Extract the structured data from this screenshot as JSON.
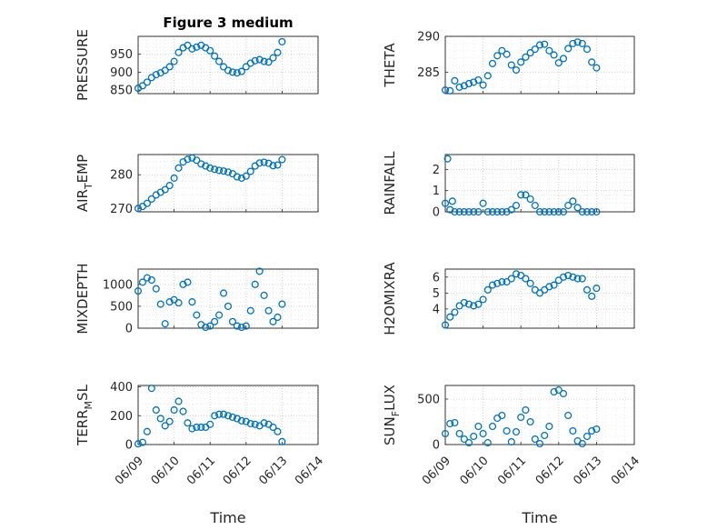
{
  "figure": {
    "title": "Figure 3 medium",
    "marker_color": "#0072BD",
    "marker": "circle",
    "grid": true,
    "minor_grid": true
  },
  "chart_data": [
    {
      "type": "scatter",
      "ylabel": "PRESSURE",
      "ylim": [
        840,
        1000
      ],
      "yticks": [
        850,
        900,
        950
      ],
      "xlim": [
        "06/09",
        "06/14"
      ],
      "xticks": [
        "06/09",
        "06/10",
        "06/11",
        "06/12",
        "06/13",
        "06/14"
      ],
      "show_xticks": false,
      "xlabel": "",
      "x": [
        "06/09 00:00",
        "06/09 03:00",
        "06/09 06:00",
        "06/09 09:00",
        "06/09 12:00",
        "06/09 15:00",
        "06/09 18:00",
        "06/09 21:00",
        "06/10 00:00",
        "06/10 03:00",
        "06/10 06:00",
        "06/10 09:00",
        "06/10 12:00",
        "06/10 15:00",
        "06/10 18:00",
        "06/10 21:00",
        "06/11 00:00",
        "06/11 03:00",
        "06/11 06:00",
        "06/11 09:00",
        "06/11 12:00",
        "06/11 15:00",
        "06/11 18:00",
        "06/11 21:00",
        "06/12 00:00",
        "06/12 03:00",
        "06/12 06:00",
        "06/12 09:00",
        "06/12 12:00",
        "06/12 15:00",
        "06/12 18:00",
        "06/12 21:00",
        "06/13 00:00"
      ],
      "y": [
        855,
        862,
        872,
        885,
        893,
        898,
        905,
        915,
        930,
        955,
        968,
        975,
        965,
        970,
        975,
        968,
        960,
        945,
        930,
        915,
        905,
        900,
        898,
        902,
        915,
        925,
        932,
        935,
        930,
        928,
        940,
        955,
        985
      ]
    },
    {
      "type": "scatter",
      "ylabel": "THETA",
      "ylim": [
        282,
        290
      ],
      "yticks": [
        285,
        290
      ],
      "xlim": [
        "06/09",
        "06/14"
      ],
      "xticks": [
        "06/09",
        "06/10",
        "06/11",
        "06/12",
        "06/13",
        "06/14"
      ],
      "show_xticks": false,
      "xlabel": "",
      "x": [
        "06/09 00:00",
        "06/09 03:00",
        "06/09 06:00",
        "06/09 09:00",
        "06/09 12:00",
        "06/09 15:00",
        "06/09 18:00",
        "06/09 21:00",
        "06/10 00:00",
        "06/10 03:00",
        "06/10 06:00",
        "06/10 09:00",
        "06/10 12:00",
        "06/10 15:00",
        "06/10 18:00",
        "06/10 21:00",
        "06/11 00:00",
        "06/11 03:00",
        "06/11 06:00",
        "06/11 09:00",
        "06/11 12:00",
        "06/11 15:00",
        "06/11 18:00",
        "06/11 21:00",
        "06/12 00:00",
        "06/12 03:00",
        "06/12 06:00",
        "06/12 09:00",
        "06/12 12:00",
        "06/12 15:00",
        "06/12 18:00",
        "06/12 21:00",
        "06/13 00:00"
      ],
      "y": [
        282.5,
        282.4,
        283.8,
        282.9,
        283.1,
        283.4,
        283.6,
        283.9,
        283.2,
        284.5,
        286.2,
        287.3,
        288.0,
        287.5,
        286.0,
        285.3,
        286.4,
        287.1,
        287.7,
        288.2,
        288.8,
        288.9,
        288.0,
        287.4,
        286.3,
        286.9,
        288.3,
        289.0,
        289.2,
        289.0,
        288.2,
        286.4,
        285.6
      ]
    },
    {
      "type": "scatter",
      "ylabel": "AIR_TEMP",
      "ylabel_display": [
        "AIR",
        "T",
        "EMP"
      ],
      "ylim": [
        269,
        286
      ],
      "yticks": [
        270,
        280
      ],
      "xlim": [
        "06/09",
        "06/14"
      ],
      "xticks": [
        "06/09",
        "06/10",
        "06/11",
        "06/12",
        "06/13",
        "06/14"
      ],
      "show_xticks": false,
      "xlabel": "",
      "x": [
        "06/09 00:00",
        "06/09 03:00",
        "06/09 06:00",
        "06/09 09:00",
        "06/09 12:00",
        "06/09 15:00",
        "06/09 18:00",
        "06/09 21:00",
        "06/10 00:00",
        "06/10 03:00",
        "06/10 06:00",
        "06/10 09:00",
        "06/10 12:00",
        "06/10 15:00",
        "06/10 18:00",
        "06/10 21:00",
        "06/11 00:00",
        "06/11 03:00",
        "06/11 06:00",
        "06/11 09:00",
        "06/11 12:00",
        "06/11 15:00",
        "06/11 18:00",
        "06/11 21:00",
        "06/12 00:00",
        "06/12 03:00",
        "06/12 06:00",
        "06/12 09:00",
        "06/12 12:00",
        "06/12 15:00",
        "06/12 18:00",
        "06/12 21:00",
        "06/13 00:00"
      ],
      "y": [
        270.0,
        270.6,
        271.5,
        272.8,
        274.0,
        274.8,
        275.6,
        276.8,
        279.0,
        282.0,
        283.8,
        284.6,
        285.0,
        284.3,
        283.2,
        282.6,
        282.0,
        281.6,
        281.3,
        281.1,
        280.8,
        280.3,
        279.4,
        279.0,
        279.6,
        281.0,
        282.6,
        283.5,
        283.7,
        283.4,
        282.7,
        282.9,
        284.5
      ]
    },
    {
      "type": "scatter",
      "ylabel": "RAINFALL",
      "ylim": [
        0,
        2.7
      ],
      "yticks": [
        0,
        1,
        2
      ],
      "xlim": [
        "06/09",
        "06/14"
      ],
      "xticks": [
        "06/09",
        "06/10",
        "06/11",
        "06/12",
        "06/13",
        "06/14"
      ],
      "show_xticks": false,
      "xlabel": "",
      "x": [
        "06/09 00:00",
        "06/09 01:30",
        "06/09 03:00",
        "06/09 04:30",
        "06/09 06:00",
        "06/09 09:00",
        "06/09 12:00",
        "06/09 15:00",
        "06/09 18:00",
        "06/09 21:00",
        "06/10 00:00",
        "06/10 03:00",
        "06/10 06:00",
        "06/10 09:00",
        "06/10 12:00",
        "06/10 15:00",
        "06/10 18:00",
        "06/10 21:00",
        "06/11 00:00",
        "06/11 03:00",
        "06/11 06:00",
        "06/11 09:00",
        "06/11 12:00",
        "06/11 15:00",
        "06/11 18:00",
        "06/11 21:00",
        "06/12 00:00",
        "06/12 03:00",
        "06/12 06:00",
        "06/12 09:00",
        "06/12 12:00",
        "06/12 15:00",
        "06/12 18:00",
        "06/12 21:00",
        "06/13 00:00"
      ],
      "y": [
        0.4,
        2.5,
        0.1,
        0.5,
        0.0,
        0.0,
        0.0,
        0.0,
        0.0,
        0.0,
        0.4,
        0.0,
        0.0,
        0.0,
        0.0,
        0.0,
        0.1,
        0.3,
        0.8,
        0.8,
        0.6,
        0.3,
        0.0,
        0.0,
        0.0,
        0.0,
        0.0,
        0.0,
        0.3,
        0.5,
        0.2,
        0.0,
        0.0,
        0.0,
        0.0
      ]
    },
    {
      "type": "scatter",
      "ylabel": "MIXDEPTH",
      "ylim": [
        0,
        1350
      ],
      "yticks": [
        0,
        500,
        1000
      ],
      "xlim": [
        "06/09",
        "06/14"
      ],
      "xticks": [
        "06/09",
        "06/10",
        "06/11",
        "06/12",
        "06/13",
        "06/14"
      ],
      "show_xticks": false,
      "xlabel": "",
      "x": [
        "06/09 00:00",
        "06/09 03:00",
        "06/09 06:00",
        "06/09 09:00",
        "06/09 12:00",
        "06/09 15:00",
        "06/09 18:00",
        "06/09 21:00",
        "06/10 00:00",
        "06/10 03:00",
        "06/10 06:00",
        "06/10 09:00",
        "06/10 12:00",
        "06/10 15:00",
        "06/10 18:00",
        "06/10 21:00",
        "06/11 00:00",
        "06/11 03:00",
        "06/11 06:00",
        "06/11 09:00",
        "06/11 12:00",
        "06/11 15:00",
        "06/11 18:00",
        "06/11 21:00",
        "06/12 00:00",
        "06/12 03:00",
        "06/12 06:00",
        "06/12 09:00",
        "06/12 12:00",
        "06/12 15:00",
        "06/12 18:00",
        "06/12 21:00",
        "06/13 00:00"
      ],
      "y": [
        850,
        1050,
        1150,
        1100,
        900,
        550,
        100,
        600,
        650,
        580,
        1000,
        1050,
        600,
        300,
        80,
        20,
        50,
        150,
        300,
        800,
        500,
        150,
        50,
        20,
        50,
        400,
        1000,
        1300,
        750,
        400,
        150,
        250,
        550
      ]
    },
    {
      "type": "scatter",
      "ylabel": "H2OMIXRA",
      "ylim": [
        2.8,
        6.5
      ],
      "yticks": [
        4,
        5,
        6
      ],
      "xlim": [
        "06/09",
        "06/14"
      ],
      "xticks": [
        "06/09",
        "06/10",
        "06/11",
        "06/12",
        "06/13",
        "06/14"
      ],
      "show_xticks": false,
      "xlabel": "",
      "x": [
        "06/09 00:00",
        "06/09 03:00",
        "06/09 06:00",
        "06/09 09:00",
        "06/09 12:00",
        "06/09 15:00",
        "06/09 18:00",
        "06/09 21:00",
        "06/10 00:00",
        "06/10 03:00",
        "06/10 06:00",
        "06/10 09:00",
        "06/10 12:00",
        "06/10 15:00",
        "06/10 18:00",
        "06/10 21:00",
        "06/11 00:00",
        "06/11 03:00",
        "06/11 06:00",
        "06/11 09:00",
        "06/11 12:00",
        "06/11 15:00",
        "06/11 18:00",
        "06/11 21:00",
        "06/12 00:00",
        "06/12 03:00",
        "06/12 06:00",
        "06/12 09:00",
        "06/12 12:00",
        "06/12 15:00",
        "06/12 18:00",
        "06/12 21:00",
        "06/13 00:00"
      ],
      "y": [
        3.0,
        3.5,
        3.8,
        4.2,
        4.4,
        4.3,
        4.2,
        4.3,
        4.6,
        5.2,
        5.5,
        5.6,
        5.7,
        5.7,
        5.9,
        6.2,
        6.1,
        5.9,
        5.6,
        5.2,
        5.0,
        5.2,
        5.4,
        5.5,
        5.8,
        6.0,
        6.1,
        6.0,
        5.9,
        5.9,
        5.2,
        4.8,
        5.3
      ]
    },
    {
      "type": "scatter",
      "ylabel": "TERR_MSL",
      "ylabel_display": [
        "TERR",
        "M",
        "SL"
      ],
      "ylim": [
        0,
        410
      ],
      "yticks": [
        0,
        200,
        400
      ],
      "xlim": [
        "06/09",
        "06/14"
      ],
      "xticks": [
        "06/09",
        "06/10",
        "06/11",
        "06/12",
        "06/13",
        "06/14"
      ],
      "show_xticks": true,
      "xlabel": "Time",
      "x": [
        "06/09 00:00",
        "06/09 03:00",
        "06/09 06:00",
        "06/09 09:00",
        "06/09 12:00",
        "06/09 15:00",
        "06/09 18:00",
        "06/09 21:00",
        "06/10 00:00",
        "06/10 03:00",
        "06/10 06:00",
        "06/10 09:00",
        "06/10 12:00",
        "06/10 15:00",
        "06/10 18:00",
        "06/10 21:00",
        "06/11 00:00",
        "06/11 03:00",
        "06/11 06:00",
        "06/11 09:00",
        "06/11 12:00",
        "06/11 15:00",
        "06/11 18:00",
        "06/11 21:00",
        "06/12 00:00",
        "06/12 03:00",
        "06/12 06:00",
        "06/12 09:00",
        "06/12 12:00",
        "06/12 15:00",
        "06/12 18:00",
        "06/12 21:00",
        "06/13 00:00"
      ],
      "y": [
        5,
        15,
        90,
        390,
        240,
        180,
        130,
        160,
        240,
        300,
        230,
        150,
        110,
        120,
        120,
        120,
        140,
        200,
        210,
        210,
        200,
        190,
        180,
        165,
        160,
        145,
        140,
        130,
        150,
        140,
        120,
        90,
        20
      ]
    },
    {
      "type": "scatter",
      "ylabel": "SUN_FLUX",
      "ylabel_display": [
        "SUN",
        "F",
        "LUX"
      ],
      "ylim": [
        0,
        650
      ],
      "yticks": [
        0,
        500
      ],
      "xlim": [
        "06/09",
        "06/14"
      ],
      "xticks": [
        "06/09",
        "06/10",
        "06/11",
        "06/12",
        "06/13",
        "06/14"
      ],
      "show_xticks": true,
      "xlabel": "Time",
      "x": [
        "06/09 00:00",
        "06/09 03:00",
        "06/09 06:00",
        "06/09 09:00",
        "06/09 12:00",
        "06/09 15:00",
        "06/09 18:00",
        "06/09 21:00",
        "06/10 00:00",
        "06/10 03:00",
        "06/10 06:00",
        "06/10 09:00",
        "06/10 12:00",
        "06/10 15:00",
        "06/10 18:00",
        "06/10 21:00",
        "06/11 00:00",
        "06/11 03:00",
        "06/11 06:00",
        "06/11 09:00",
        "06/11 12:00",
        "06/11 15:00",
        "06/11 18:00",
        "06/11 21:00",
        "06/12 00:00",
        "06/12 03:00",
        "06/12 06:00",
        "06/12 09:00",
        "06/12 12:00",
        "06/12 15:00",
        "06/12 18:00",
        "06/12 21:00",
        "06/13 00:00"
      ],
      "y": [
        120,
        230,
        240,
        120,
        60,
        20,
        90,
        200,
        120,
        20,
        200,
        290,
        320,
        150,
        30,
        140,
        300,
        380,
        250,
        60,
        10,
        100,
        200,
        580,
        600,
        560,
        320,
        150,
        40,
        10,
        90,
        150,
        170
      ]
    }
  ]
}
